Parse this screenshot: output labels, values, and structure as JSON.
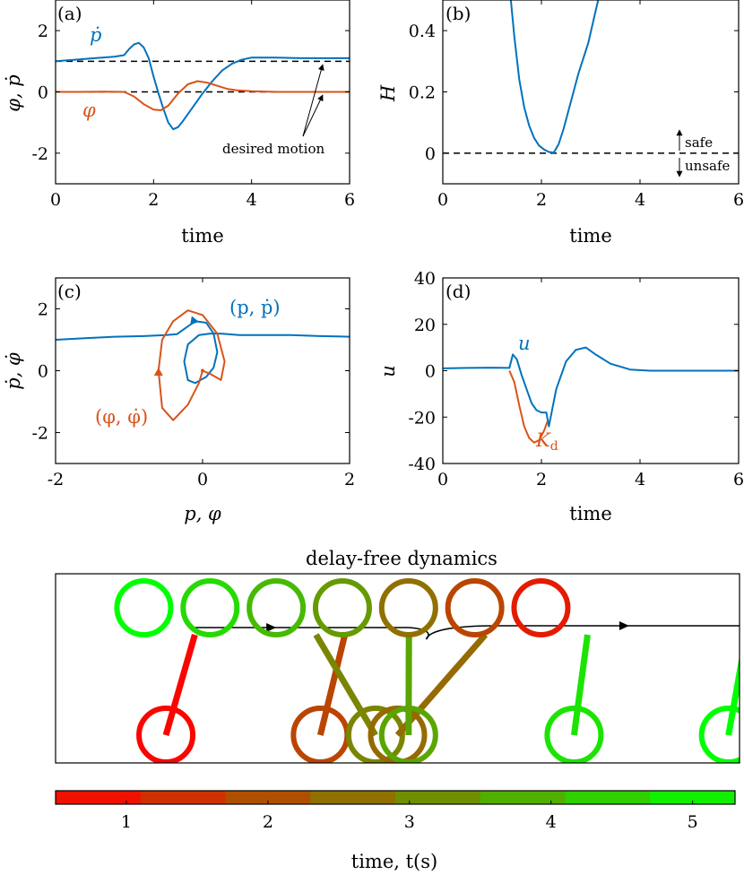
{
  "colors": {
    "blue": "#0072BD",
    "orange": "#D95319",
    "axis": "#000000",
    "reference": "#000000"
  },
  "chart_data": [
    {
      "id": "a",
      "type": "line",
      "panel_label": "(a)",
      "xlabel": "time",
      "ylabel": "φ, ṗ",
      "xlim": [
        0,
        6
      ],
      "ylim": [
        -3,
        3
      ],
      "xticks": [
        "0",
        "2",
        "4",
        "6"
      ],
      "yticks": [
        "-2",
        "0",
        "2"
      ],
      "grid": false,
      "series": [
        {
          "name": "ṗ",
          "color": "#0072BD",
          "x": [
            0,
            0.4,
            0.8,
            1.2,
            1.4,
            1.5,
            1.6,
            1.7,
            1.8,
            1.9,
            2.0,
            2.1,
            2.2,
            2.3,
            2.4,
            2.5,
            2.6,
            2.8,
            3.0,
            3.2,
            3.4,
            3.6,
            3.8,
            4.0,
            4.5,
            5.0,
            5.5,
            6.0
          ],
          "y": [
            1.0,
            1.05,
            1.1,
            1.15,
            1.2,
            1.4,
            1.55,
            1.6,
            1.45,
            1.1,
            0.5,
            -0.05,
            -0.55,
            -1.0,
            -1.22,
            -1.15,
            -0.95,
            -0.5,
            -0.05,
            0.35,
            0.7,
            0.92,
            1.05,
            1.12,
            1.12,
            1.1,
            1.1,
            1.1
          ]
        },
        {
          "name": "φ",
          "color": "#D95319",
          "x": [
            0,
            0.5,
            1.0,
            1.4,
            1.6,
            1.8,
            2.0,
            2.15,
            2.3,
            2.5,
            2.7,
            2.9,
            3.1,
            3.3,
            3.5,
            3.7,
            4.0,
            4.5,
            5.0,
            6.0
          ],
          "y": [
            0.0,
            0.0,
            0.01,
            0.0,
            -0.15,
            -0.4,
            -0.58,
            -0.6,
            -0.45,
            -0.05,
            0.25,
            0.35,
            0.3,
            0.2,
            0.1,
            0.05,
            0.02,
            0.0,
            0.0,
            0.0
          ]
        }
      ],
      "reference_lines": [
        {
          "y": 1.0
        },
        {
          "y": 0.0
        }
      ],
      "annotation": "desired motion"
    },
    {
      "id": "b",
      "type": "line",
      "panel_label": "(b)",
      "xlabel": "time",
      "ylabel": "H",
      "xlim": [
        0,
        6
      ],
      "ylim": [
        -0.1,
        0.5
      ],
      "xticks": [
        "0",
        "2",
        "4",
        "6"
      ],
      "yticks": [
        "0",
        "0.2",
        "0.4"
      ],
      "grid": false,
      "series": [
        {
          "name": "",
          "color": "#0072BD",
          "x": [
            1.38,
            1.45,
            1.55,
            1.65,
            1.75,
            1.85,
            1.95,
            2.05,
            2.15,
            2.25,
            2.35,
            2.45,
            2.55,
            2.65,
            2.75,
            2.85,
            2.95,
            3.05,
            3.15
          ],
          "y": [
            0.5,
            0.38,
            0.24,
            0.15,
            0.09,
            0.05,
            0.025,
            0.012,
            0.004,
            0.002,
            0.03,
            0.08,
            0.14,
            0.2,
            0.26,
            0.31,
            0.36,
            0.43,
            0.5
          ]
        }
      ],
      "reference_lines": [
        {
          "y": 0.0
        }
      ],
      "annotations": [
        "safe",
        "unsafe"
      ]
    },
    {
      "id": "c",
      "type": "line",
      "panel_label": "(c)",
      "xlabel": "p, φ",
      "ylabel": "ṗ, φ̇",
      "xlim": [
        -2,
        2
      ],
      "ylim": [
        -3,
        3
      ],
      "xticks": [
        "-2",
        "0",
        "2"
      ],
      "yticks": [
        "-2",
        "0",
        "2"
      ],
      "grid": false,
      "series": [
        {
          "name": "(p, ṗ)",
          "color": "#0072BD",
          "x": [
            -2.0,
            -1.6,
            -1.2,
            -0.8,
            -0.5,
            -0.35,
            -0.25,
            -0.1,
            0.05,
            0.15,
            0.2,
            0.15,
            0.05,
            -0.1,
            -0.2,
            -0.25,
            -0.2,
            -0.05,
            0.1,
            0.25,
            0.35,
            0.5,
            0.8,
            1.2,
            1.6,
            2.0
          ],
          "y": [
            1.0,
            1.05,
            1.1,
            1.12,
            1.15,
            1.18,
            1.35,
            1.6,
            1.55,
            1.2,
            0.6,
            0.1,
            -0.2,
            -0.4,
            -0.3,
            0.3,
            0.85,
            1.15,
            1.2,
            1.2,
            1.18,
            1.15,
            1.15,
            1.15,
            1.12,
            1.1
          ]
        },
        {
          "name": "(φ, φ̇)",
          "color": "#D95319",
          "x": [
            0.0,
            -0.05,
            -0.2,
            -0.4,
            -0.55,
            -0.6,
            -0.55,
            -0.4,
            -0.2,
            0.0,
            0.2,
            0.3,
            0.25,
            0.1,
            0.0
          ],
          "y": [
            0.0,
            -0.4,
            -1.1,
            -1.6,
            -1.2,
            0.0,
            1.0,
            1.6,
            1.95,
            1.8,
            1.2,
            0.3,
            -0.3,
            -0.1,
            0.0
          ]
        }
      ]
    },
    {
      "id": "d",
      "type": "line",
      "panel_label": "(d)",
      "xlabel": "time",
      "ylabel": "u",
      "xlim": [
        0,
        6
      ],
      "ylim": [
        -40,
        40
      ],
      "xticks": [
        "0",
        "2",
        "4",
        "6"
      ],
      "yticks": [
        "-40",
        "-20",
        "0",
        "20",
        "40"
      ],
      "grid": false,
      "series": [
        {
          "name": "u",
          "color": "#0072BD",
          "x": [
            0,
            0.5,
            1.0,
            1.35,
            1.42,
            1.5,
            1.6,
            1.7,
            1.8,
            1.9,
            2.0,
            2.1,
            2.15,
            2.3,
            2.5,
            2.7,
            2.9,
            3.1,
            3.4,
            3.8,
            4.2,
            4.6,
            5.0,
            6.0
          ],
          "y": [
            1.0,
            1.2,
            1.3,
            1.2,
            7.0,
            5.0,
            -2.0,
            -8.0,
            -14.0,
            -17.0,
            -18.0,
            -18.0,
            -24.0,
            -8.0,
            4.0,
            9.0,
            10.0,
            7.0,
            3.0,
            0.5,
            0.0,
            0.0,
            0.0,
            0.0
          ]
        },
        {
          "name": "K_d",
          "color": "#D95319",
          "x": [
            1.35,
            1.45,
            1.55,
            1.65,
            1.75,
            1.85,
            1.95,
            2.05,
            2.12
          ],
          "y": [
            0.0,
            -5.0,
            -15.0,
            -24.0,
            -29.0,
            -31.0,
            -30.0,
            -26.0,
            -22.0
          ]
        }
      ]
    },
    {
      "id": "e",
      "type": "diagram",
      "title": "delay-free dynamics",
      "colorbar": {
        "label": "time, t(s)",
        "ticks": [
          "1",
          "2",
          "3",
          "4",
          "5"
        ],
        "range": [
          0.5,
          5.3
        ],
        "color_low": "#FF0000",
        "color_high": "#00FF00"
      },
      "wheels": [
        {
          "x": 1.4,
          "row": "top",
          "t": 5.3
        },
        {
          "x": 1.7,
          "row": "top",
          "t": 4.6
        },
        {
          "x": 2.0,
          "row": "top",
          "t": 4.0
        },
        {
          "x": 2.3,
          "row": "top",
          "t": 3.4
        },
        {
          "x": 2.6,
          "row": "top",
          "t": 2.6
        },
        {
          "x": 2.9,
          "row": "top",
          "t": 1.8
        },
        {
          "x": 3.2,
          "row": "top",
          "t": 1.0
        }
      ],
      "cycles": [
        {
          "x": 1.5,
          "t": 0.6,
          "lean": 0.05
        },
        {
          "x": 2.2,
          "t": 1.8,
          "lean": 0.03
        },
        {
          "x": 2.45,
          "t": 3.0,
          "lean": -0.4
        },
        {
          "x": 2.55,
          "t": 2.5,
          "lean": 0.35
        },
        {
          "x": 2.6,
          "t": 3.6,
          "lean": -0.08
        },
        {
          "x": 3.35,
          "t": 4.8,
          "lean": -0.02
        },
        {
          "x": 4.05,
          "t": 5.3,
          "lean": 0.0
        }
      ]
    }
  ]
}
